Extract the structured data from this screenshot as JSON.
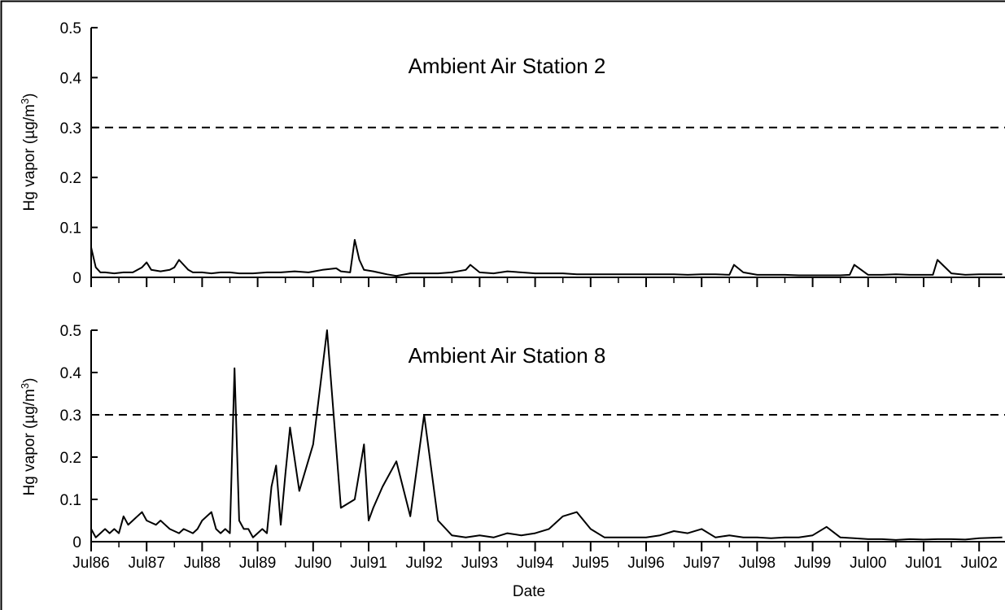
{
  "chart_data": [
    {
      "type": "line",
      "title": "Ambient Air Station 2",
      "ylabel": "Hg vapor (µg/m³)",
      "xlabel": "",
      "ylim": [
        0,
        0.5
      ],
      "yticks": [
        0,
        0.1,
        0.2,
        0.3,
        0.4,
        0.5
      ],
      "ytick_labels": [
        "0",
        "0.1",
        "0.2",
        "0.3",
        "0.4",
        "0.5"
      ],
      "xlim": [
        "1986-07",
        "2003-01"
      ],
      "xtick_labels": [],
      "reference_line": {
        "y": 0.3,
        "style": "dashed"
      },
      "grid": false,
      "series": [
        {
          "x": [
            "1986-07",
            "1986-08",
            "1986-09",
            "1986-10",
            "1986-12",
            "1987-02",
            "1987-04",
            "1987-06",
            "1987-07",
            "1987-08",
            "1987-10",
            "1987-12",
            "1988-01",
            "1988-02",
            "1988-04",
            "1988-05",
            "1988-07",
            "1988-09",
            "1988-11",
            "1989-01",
            "1989-03",
            "1989-06",
            "1989-09",
            "1989-12",
            "1990-03",
            "1990-06",
            "1990-09",
            "1990-12",
            "1991-01",
            "1991-03",
            "1991-04",
            "1991-05",
            "1991-06",
            "1991-08",
            "1991-09",
            "1991-11",
            "1992-01",
            "1992-04",
            "1992-07",
            "1992-10",
            "1993-01",
            "1993-04",
            "1993-05",
            "1993-07",
            "1993-10",
            "1994-01",
            "1994-04",
            "1994-07",
            "1994-10",
            "1995-01",
            "1995-04",
            "1995-07",
            "1995-10",
            "1996-01",
            "1996-04",
            "1996-07",
            "1996-10",
            "1997-01",
            "1997-04",
            "1997-07",
            "1997-10",
            "1998-01",
            "1998-02",
            "1998-04",
            "1998-07",
            "1998-10",
            "1999-01",
            "1999-04",
            "1999-07",
            "1999-10",
            "2000-01",
            "2000-03",
            "2000-04",
            "2000-07",
            "2000-10",
            "2001-01",
            "2001-04",
            "2001-07",
            "2001-09",
            "2001-10",
            "2002-01",
            "2002-04",
            "2002-07",
            "2002-12"
          ],
          "y": [
            0.06,
            0.02,
            0.01,
            0.01,
            0.008,
            0.01,
            0.01,
            0.02,
            0.03,
            0.015,
            0.012,
            0.015,
            0.02,
            0.035,
            0.015,
            0.01,
            0.01,
            0.008,
            0.01,
            0.01,
            0.008,
            0.008,
            0.01,
            0.01,
            0.012,
            0.01,
            0.015,
            0.018,
            0.012,
            0.01,
            0.075,
            0.035,
            0.015,
            0.012,
            0.01,
            0.006,
            0.003,
            0.008,
            0.008,
            0.008,
            0.01,
            0.015,
            0.025,
            0.01,
            0.008,
            0.012,
            0.01,
            0.008,
            0.008,
            0.008,
            0.006,
            0.006,
            0.006,
            0.006,
            0.006,
            0.006,
            0.006,
            0.006,
            0.005,
            0.006,
            0.006,
            0.005,
            0.025,
            0.01,
            0.005,
            0.005,
            0.005,
            0.004,
            0.004,
            0.004,
            0.004,
            0.005,
            0.025,
            0.005,
            0.005,
            0.006,
            0.005,
            0.005,
            0.005,
            0.035,
            0.008,
            0.005,
            0.006,
            0.006
          ]
        }
      ]
    },
    {
      "type": "line",
      "title": "Ambient Air Station 8",
      "ylabel": "Hg vapor (µg/m³)",
      "xlabel": "Date",
      "ylim": [
        0,
        0.5
      ],
      "yticks": [
        0,
        0.1,
        0.2,
        0.3,
        0.4,
        0.5
      ],
      "ytick_labels": [
        "0",
        "0.1",
        "0.2",
        "0.3",
        "0.4",
        "0.5"
      ],
      "xlim": [
        "1986-07",
        "2003-01"
      ],
      "xtick_labels": [
        "Jul86",
        "Jul87",
        "Jul88",
        "Jul89",
        "Jul90",
        "Jul91",
        "Jul92",
        "Jul93",
        "Jul94",
        "Jul95",
        "Jul96",
        "Jul97",
        "Jul98",
        "Jul99",
        "Jul00",
        "Jul01",
        "Jul02"
      ],
      "reference_line": {
        "y": 0.3,
        "style": "dashed"
      },
      "grid": false,
      "series": [
        {
          "x": [
            "1986-07",
            "1986-08",
            "1986-09",
            "1986-10",
            "1986-11",
            "1986-12",
            "1987-01",
            "1987-02",
            "1987-03",
            "1987-04",
            "1987-05",
            "1987-06",
            "1987-07",
            "1987-08",
            "1987-09",
            "1987-10",
            "1987-11",
            "1987-12",
            "1988-01",
            "1988-02",
            "1988-03",
            "1988-04",
            "1988-05",
            "1988-06",
            "1988-07",
            "1988-08",
            "1988-09",
            "1988-10",
            "1988-11",
            "1988-12",
            "1989-01",
            "1989-02",
            "1989-03",
            "1989-04",
            "1989-05",
            "1989-06",
            "1989-07",
            "1989-08",
            "1989-09",
            "1989-10",
            "1989-11",
            "1989-12",
            "1990-01",
            "1990-02",
            "1990-04",
            "1990-07",
            "1990-10",
            "1991-01",
            "1991-04",
            "1991-06",
            "1991-07",
            "1991-08",
            "1991-10",
            "1992-01",
            "1992-04",
            "1992-07",
            "1992-10",
            "1993-01",
            "1993-04",
            "1993-07",
            "1993-10",
            "1994-01",
            "1994-04",
            "1994-07",
            "1994-10",
            "1995-01",
            "1995-04",
            "1995-07",
            "1995-10",
            "1996-01",
            "1996-04",
            "1996-07",
            "1996-10",
            "1997-01",
            "1997-04",
            "1997-07",
            "1997-10",
            "1998-01",
            "1998-04",
            "1998-05",
            "1998-07",
            "1998-10",
            "1999-01",
            "1999-04",
            "1999-07",
            "1999-10",
            "2000-01",
            "2000-04",
            "2000-07",
            "2000-10",
            "2001-01",
            "2001-04",
            "2001-07",
            "2001-10",
            "2002-01",
            "2002-04",
            "2002-07",
            "2002-12"
          ],
          "y": [
            0.03,
            0.01,
            0.02,
            0.03,
            0.02,
            0.03,
            0.02,
            0.06,
            0.04,
            0.05,
            0.06,
            0.07,
            0.05,
            0.045,
            0.04,
            0.05,
            0.04,
            0.03,
            0.025,
            0.02,
            0.03,
            0.025,
            0.02,
            0.03,
            0.05,
            0.06,
            0.07,
            0.03,
            0.02,
            0.03,
            0.02,
            0.41,
            0.05,
            0.03,
            0.03,
            0.01,
            0.02,
            0.03,
            0.02,
            0.13,
            0.18,
            0.04,
            0.16,
            0.27,
            0.12,
            0.23,
            0.5,
            0.08,
            0.1,
            0.23,
            0.05,
            0.08,
            0.13,
            0.19,
            0.06,
            0.3,
            0.05,
            0.015,
            0.01,
            0.015,
            0.01,
            0.02,
            0.015,
            0.02,
            0.03,
            0.06,
            0.07,
            0.03,
            0.01,
            0.01,
            0.01,
            0.01,
            0.015,
            0.025,
            0.02,
            0.03,
            0.01,
            0.015,
            0.01,
            0.01,
            0.01,
            0.008,
            0.01,
            0.01,
            0.015,
            0.035,
            0.01,
            0.008,
            0.006,
            0.006,
            0.004,
            0.006,
            0.005,
            0.006,
            0.006,
            0.005,
            0.008,
            0.01
          ]
        }
      ]
    }
  ],
  "axes_common": {
    "ylabel_prefix": "Hg vapor (µg/m",
    "ylabel_superscript": "3",
    "ylabel_suffix": ")"
  }
}
